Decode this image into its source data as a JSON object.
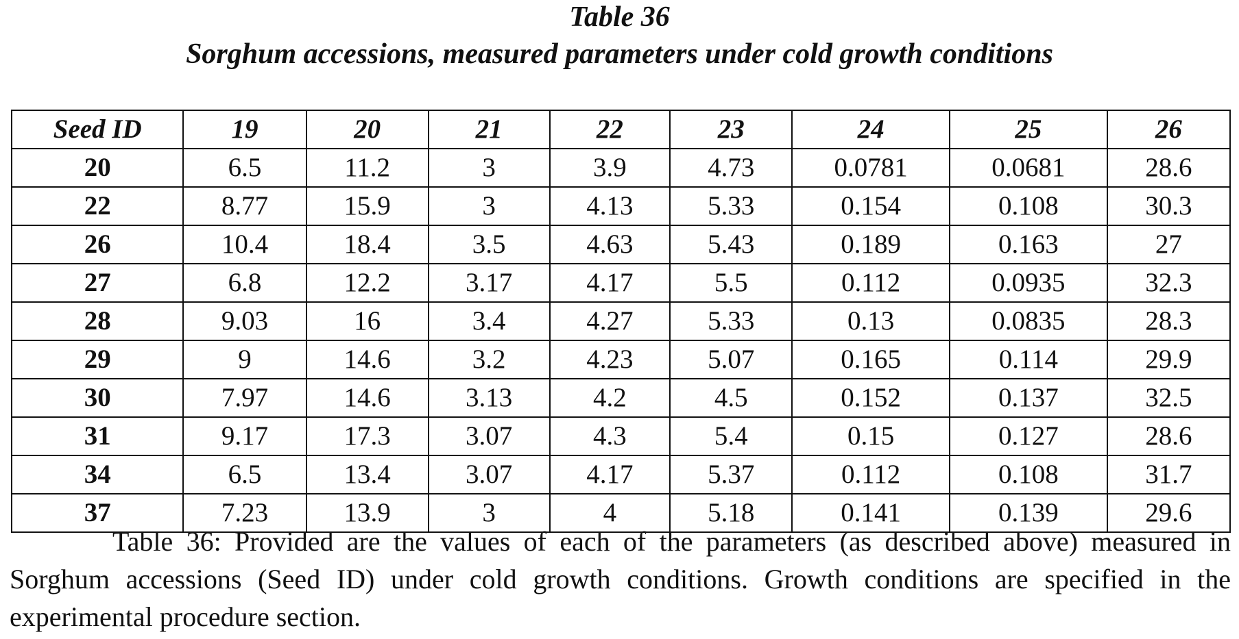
{
  "title": "Table 36",
  "subtitle": "Sorghum accessions, measured parameters under cold growth conditions",
  "table": {
    "headers": [
      "Seed ID",
      "19",
      "20",
      "21",
      "22",
      "23",
      "24",
      "25",
      "26"
    ],
    "rows": [
      [
        "20",
        "6.5",
        "11.2",
        "3",
        "3.9",
        "4.73",
        "0.0781",
        "0.0681",
        "28.6"
      ],
      [
        "22",
        "8.77",
        "15.9",
        "3",
        "4.13",
        "5.33",
        "0.154",
        "0.108",
        "30.3"
      ],
      [
        "26",
        "10.4",
        "18.4",
        "3.5",
        "4.63",
        "5.43",
        "0.189",
        "0.163",
        "27"
      ],
      [
        "27",
        "6.8",
        "12.2",
        "3.17",
        "4.17",
        "5.5",
        "0.112",
        "0.0935",
        "32.3"
      ],
      [
        "28",
        "9.03",
        "16",
        "3.4",
        "4.27",
        "5.33",
        "0.13",
        "0.0835",
        "28.3"
      ],
      [
        "29",
        "9",
        "14.6",
        "3.2",
        "4.23",
        "5.07",
        "0.165",
        "0.114",
        "29.9"
      ],
      [
        "30",
        "7.97",
        "14.6",
        "3.13",
        "4.2",
        "4.5",
        "0.152",
        "0.137",
        "32.5"
      ],
      [
        "31",
        "9.17",
        "17.3",
        "3.07",
        "4.3",
        "5.4",
        "0.15",
        "0.127",
        "28.6"
      ],
      [
        "34",
        "6.5",
        "13.4",
        "3.07",
        "4.17",
        "5.37",
        "0.112",
        "0.108",
        "31.7"
      ],
      [
        "37",
        "7.23",
        "13.9",
        "3",
        "4",
        "5.18",
        "0.141",
        "0.139",
        "29.6"
      ]
    ]
  },
  "caption": "Table 36: Provided are the values of each of the parameters (as described above) measured in Sorghum accessions (Seed ID) under cold growth conditions. Growth conditions are specified in the experimental procedure section."
}
